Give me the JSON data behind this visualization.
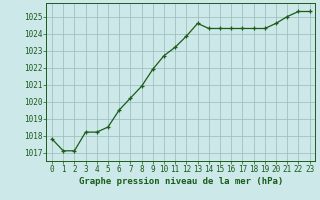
{
  "x": [
    0,
    1,
    2,
    3,
    4,
    5,
    6,
    7,
    8,
    9,
    10,
    11,
    12,
    13,
    14,
    15,
    16,
    17,
    18,
    19,
    20,
    21,
    22,
    23
  ],
  "y": [
    1017.8,
    1017.1,
    1017.1,
    1018.2,
    1018.2,
    1018.5,
    1019.5,
    1020.2,
    1020.9,
    1021.9,
    1022.7,
    1023.2,
    1023.85,
    1024.6,
    1024.3,
    1024.3,
    1024.3,
    1024.3,
    1024.3,
    1024.3,
    1024.6,
    1025.0,
    1025.3,
    1025.3
  ],
  "ylim": [
    1016.5,
    1025.8
  ],
  "yticks": [
    1017,
    1018,
    1019,
    1020,
    1021,
    1022,
    1023,
    1024,
    1025
  ],
  "xticks": [
    0,
    1,
    2,
    3,
    4,
    5,
    6,
    7,
    8,
    9,
    10,
    11,
    12,
    13,
    14,
    15,
    16,
    17,
    18,
    19,
    20,
    21,
    22,
    23
  ],
  "xlabel": "Graphe pression niveau de la mer (hPa)",
  "line_color": "#1a5c1a",
  "marker": "+",
  "marker_size": 3,
  "bg_color": "#cce8e8",
  "grid_color": "#99bbbb",
  "label_color": "#1a5c1a",
  "tick_color": "#1a5c1a",
  "xlabel_fontsize": 6.5,
  "tick_fontsize": 5.5
}
